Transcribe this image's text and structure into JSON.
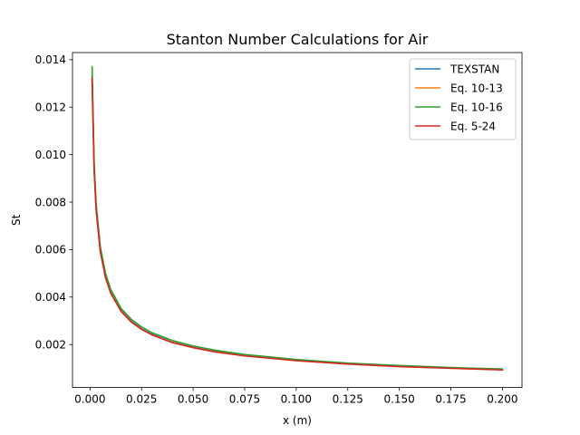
{
  "chart_data": {
    "type": "line",
    "title": "Stanton Number Calculations for Air",
    "xlabel": "x (m)",
    "ylabel": "St",
    "xlim": [
      -0.0085,
      0.2095
    ],
    "ylim": [
      0.00019,
      0.0143
    ],
    "xticks": [
      "0.000",
      "0.025",
      "0.050",
      "0.075",
      "0.100",
      "0.125",
      "0.150",
      "0.175",
      "0.200"
    ],
    "xtick_values": [
      0.0,
      0.025,
      0.05,
      0.075,
      0.1,
      0.125,
      0.15,
      0.175,
      0.2
    ],
    "yticks": [
      "0.002",
      "0.004",
      "0.006",
      "0.008",
      "0.010",
      "0.012",
      "0.014"
    ],
    "ytick_values": [
      0.002,
      0.004,
      0.006,
      0.008,
      0.01,
      0.012,
      0.014
    ],
    "grid": false,
    "legend_position": "top-right",
    "series": [
      {
        "name": "TEXSTAN",
        "color": "#1f77b4",
        "x": [
          0.001,
          0.002,
          0.003,
          0.005,
          0.0075,
          0.01,
          0.015,
          0.02,
          0.025,
          0.03,
          0.04,
          0.05,
          0.06,
          0.075,
          0.1,
          0.125,
          0.15,
          0.175,
          0.2
        ],
        "y": [
          0.0133,
          0.0094,
          0.0077,
          0.00595,
          0.00486,
          0.0042,
          0.00344,
          0.00298,
          0.00266,
          0.00243,
          0.0021,
          0.00188,
          0.00172,
          0.00153,
          0.00133,
          0.00119,
          0.00108,
          0.00101,
          0.00094
        ]
      },
      {
        "name": "Eq. 10-13",
        "color": "#ff7f0e",
        "x": [
          0.001,
          0.002,
          0.003,
          0.005,
          0.0075,
          0.01,
          0.015,
          0.02,
          0.025,
          0.03,
          0.04,
          0.05,
          0.06,
          0.075,
          0.1,
          0.125,
          0.15,
          0.175,
          0.2
        ],
        "y": [
          0.0132,
          0.00935,
          0.00763,
          0.00591,
          0.00483,
          0.00418,
          0.00341,
          0.00296,
          0.00264,
          0.00241,
          0.00209,
          0.00187,
          0.00171,
          0.00153,
          0.00132,
          0.00118,
          0.00108,
          0.001,
          0.00094
        ]
      },
      {
        "name": "Eq. 10-16",
        "color": "#2ca02c",
        "x": [
          0.001,
          0.002,
          0.003,
          0.005,
          0.0075,
          0.01,
          0.015,
          0.02,
          0.025,
          0.03,
          0.04,
          0.05,
          0.06,
          0.075,
          0.1,
          0.125,
          0.15,
          0.175,
          0.2
        ],
        "y": [
          0.0137,
          0.00967,
          0.0079,
          0.00612,
          0.005,
          0.00433,
          0.00353,
          0.00306,
          0.00274,
          0.0025,
          0.00217,
          0.00194,
          0.00177,
          0.00158,
          0.00137,
          0.00122,
          0.00112,
          0.00103,
          0.00097
        ]
      },
      {
        "name": "Eq. 5-24",
        "color": "#d62728",
        "x": [
          0.001,
          0.002,
          0.003,
          0.005,
          0.0075,
          0.01,
          0.015,
          0.02,
          0.025,
          0.03,
          0.04,
          0.05,
          0.06,
          0.075,
          0.1,
          0.125,
          0.15,
          0.175,
          0.2
        ],
        "y": [
          0.0132,
          0.00933,
          0.00762,
          0.0059,
          0.00482,
          0.00417,
          0.0034,
          0.00295,
          0.00264,
          0.00241,
          0.00208,
          0.00187,
          0.0017,
          0.00152,
          0.00132,
          0.00118,
          0.00107,
          0.001,
          0.00093
        ]
      }
    ]
  }
}
